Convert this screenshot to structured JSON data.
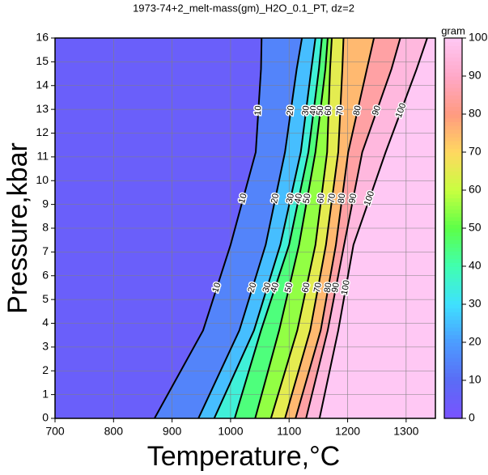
{
  "chart_data": {
    "type": "contour",
    "title": "1973-74+2_melt-mass(gm)_H2O_0.1_PT, dz=2",
    "x_label": "Temperature,°C",
    "y_label": "Pressure,kbar",
    "colorbar_label": "gram",
    "xlim": [
      700,
      1350
    ],
    "xticks": [
      700,
      800,
      900,
      1000,
      1100,
      1200,
      1300
    ],
    "ylim": [
      0,
      16
    ],
    "yticks": [
      0,
      1,
      2,
      3,
      4,
      5,
      6,
      7,
      8,
      9,
      10,
      11,
      12,
      13,
      14,
      15,
      16
    ],
    "clim": [
      0,
      100
    ],
    "cticks": [
      0,
      10,
      20,
      30,
      40,
      50,
      60,
      70,
      80,
      90,
      100
    ],
    "grid": true,
    "colormap": [
      {
        "value": 0,
        "color": "#7a52ff"
      },
      {
        "value": 10,
        "color": "#5a6cf5"
      },
      {
        "value": 20,
        "color": "#4c9cff"
      },
      {
        "value": 30,
        "color": "#3fe0ff"
      },
      {
        "value": 40,
        "color": "#40ffb0"
      },
      {
        "value": 50,
        "color": "#5cff48"
      },
      {
        "value": 60,
        "color": "#c8ff40"
      },
      {
        "value": 70,
        "color": "#ffd860"
      },
      {
        "value": 80,
        "color": "#ff9a80"
      },
      {
        "value": 90,
        "color": "#ffa8c8"
      },
      {
        "value": 100,
        "color": "#ffc8f4"
      }
    ],
    "contours": [
      {
        "level": 10,
        "x": [
          870,
          953,
          1000,
          1043,
          1052,
          1053
        ],
        "y": [
          0,
          3.7,
          7.3,
          11.2,
          14.7,
          16
        ]
      },
      {
        "level": 20,
        "x": [
          945,
          1015,
          1060,
          1093,
          1113,
          1122
        ],
        "y": [
          0,
          3.7,
          7.3,
          11.2,
          14.7,
          16
        ]
      },
      {
        "level": 30,
        "x": [
          972,
          1040,
          1085,
          1120,
          1138,
          1145
        ],
        "y": [
          0,
          3.7,
          7.3,
          11.2,
          14.7,
          16
        ]
      },
      {
        "level": 40,
        "x": [
          1007,
          1052,
          1100,
          1133,
          1151,
          1156
        ],
        "y": [
          0,
          3.7,
          7.3,
          11.2,
          14.7,
          16
        ]
      },
      {
        "level": 50,
        "x": [
          1042,
          1083,
          1117,
          1145,
          1162,
          1166
        ],
        "y": [
          0,
          3.7,
          7.3,
          11.2,
          14.7,
          16
        ]
      },
      {
        "level": 60,
        "x": [
          1069,
          1114,
          1145,
          1165,
          1170,
          1173
        ],
        "y": [
          0,
          3.7,
          7.3,
          11.2,
          14.7,
          16
        ]
      },
      {
        "level": 70,
        "x": [
          1093,
          1136,
          1163,
          1184,
          1191,
          1193
        ],
        "y": [
          0,
          3.7,
          7.3,
          11.2,
          14.7,
          16
        ]
      },
      {
        "level": 80,
        "x": [
          1111,
          1154,
          1180,
          1201,
          1233,
          1245
        ],
        "y": [
          0,
          3.7,
          7.3,
          11.2,
          14.7,
          16
        ]
      },
      {
        "level": 90,
        "x": [
          1129,
          1166,
          1194,
          1225,
          1275,
          1290
        ],
        "y": [
          0,
          3.7,
          7.3,
          11.2,
          14.7,
          16
        ]
      },
      {
        "level": 100,
        "x": [
          1152,
          1184,
          1210,
          1265,
          1318,
          1336
        ],
        "y": [
          0,
          3.7,
          7.3,
          11.2,
          14.7,
          16
        ]
      }
    ]
  }
}
